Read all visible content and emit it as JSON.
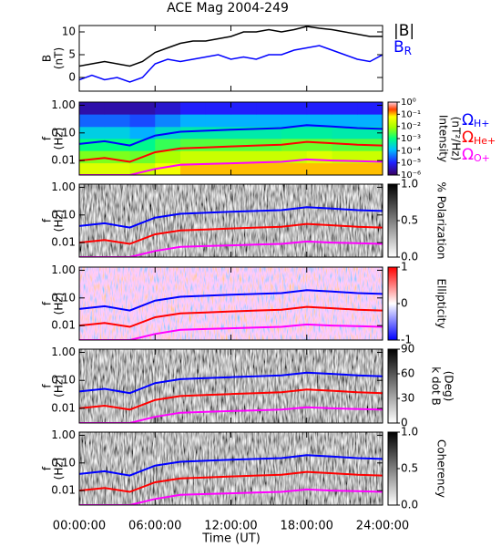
{
  "title": "ACE Mag 2004-249",
  "time_axis": {
    "xlim": [
      0,
      24
    ],
    "xticks": [
      {
        "value": 0,
        "label": "00:00:00"
      },
      {
        "value": 6,
        "label": "06:00:00"
      },
      {
        "value": 12,
        "label": "12:00:00"
      },
      {
        "value": 18,
        "label": "18:00:00"
      },
      {
        "value": 24,
        "label": "24:00:00"
      }
    ],
    "xlabel": "Time (UT)"
  },
  "chart_data": [
    {
      "type": "line",
      "ylabel": [
        "B",
        "(nT)"
      ],
      "ylim": [
        -3,
        11.4
      ],
      "yticks": [
        0,
        5,
        10
      ],
      "x": [
        0,
        1,
        2,
        3,
        4,
        5,
        6,
        7,
        8,
        9,
        10,
        11,
        12,
        13,
        14,
        15,
        16,
        17,
        18,
        19,
        20,
        21,
        22,
        23,
        24
      ],
      "series": [
        {
          "name": "|B|",
          "color": "#000000",
          "values": [
            2.5,
            3,
            3.5,
            3,
            2.5,
            3.5,
            5.5,
            6.5,
            7.5,
            8,
            8,
            8.5,
            9,
            10,
            10,
            10.5,
            10,
            10.5,
            11.2,
            10.8,
            10.5,
            10,
            9.5,
            9,
            9
          ]
        },
        {
          "name": "B",
          "subscript": "R",
          "color": "#0000ff",
          "values": [
            -0.5,
            0.5,
            -0.5,
            0,
            -1,
            0,
            3,
            4,
            3.5,
            4,
            4.5,
            5,
            4,
            4.5,
            4,
            5,
            5,
            6,
            6.5,
            7,
            6,
            5,
            4,
            3.5,
            5
          ]
        }
      ]
    },
    {
      "type": "heatmap",
      "ylabel": [
        "f",
        "(Hz)"
      ],
      "ylog": true,
      "ylim": [
        0.003,
        1.3
      ],
      "yticks": [
        0.01,
        {
          "value": 0.1,
          "label": "0.10"
        },
        {
          "value": 1,
          "label": "1.00"
        }
      ],
      "xbins": [
        0,
        2,
        4,
        6,
        8,
        10,
        12,
        14,
        16,
        18,
        20,
        22,
        24
      ],
      "fbins": [
        0.003,
        0.0083,
        0.023,
        0.063,
        0.17,
        0.48,
        1.3
      ],
      "z": [
        [
          0.03,
          0.03,
          0.02,
          0.05,
          0.1,
          0.1,
          0.1,
          0.1,
          0.1,
          0.1,
          0.1,
          0.1
        ],
        [
          0.005,
          0.005,
          0.004,
          0.01,
          0.02,
          0.02,
          0.02,
          0.02,
          0.02,
          0.03,
          0.02,
          0.02
        ],
        [
          0.001,
          0.001,
          0.0008,
          0.002,
          0.003,
          0.003,
          0.003,
          0.003,
          0.004,
          0.004,
          0.003,
          0.003
        ],
        [
          0.0002,
          0.0002,
          0.0001,
          0.0003,
          0.0005,
          0.0005,
          0.0005,
          0.0005,
          0.0006,
          0.0006,
          0.0005,
          0.0005
        ],
        [
          3e-05,
          3e-05,
          2e-05,
          5e-05,
          0.0001,
          0.0001,
          0.0001,
          0.0001,
          0.0001,
          0.0001,
          0.0001,
          0.0001
        ],
        [
          3e-06,
          3e-06,
          3e-06,
          5e-06,
          1e-05,
          1e-05,
          1e-05,
          1e-05,
          1e-05,
          1e-05,
          1e-05,
          1e-05
        ]
      ],
      "colormap": "intensity",
      "zlog": true,
      "zlim": [
        1e-06,
        1
      ],
      "zticks": [
        {
          "value": 1,
          "label": "10⁰"
        },
        {
          "value": 0.1,
          "label": "10⁻¹"
        },
        {
          "value": 0.01,
          "label": "10⁻²"
        },
        {
          "value": 0.001,
          "label": "10⁻³"
        },
        {
          "value": 0.0001,
          "label": "10⁻⁴"
        },
        {
          "value": 1e-05,
          "label": "10⁻⁵"
        },
        {
          "value": 1e-06,
          "label": "10⁻⁶"
        }
      ],
      "zlabel": [
        "Intensity",
        "(nT²/Hz)"
      ],
      "x": [
        0,
        2,
        4,
        6,
        8,
        10,
        12,
        14,
        16,
        18,
        20,
        22,
        24
      ],
      "series": [
        {
          "name": "Ω",
          "subscript": "H+",
          "color": "#0000ff",
          "values": [
            0.04,
            0.05,
            0.035,
            0.08,
            0.11,
            0.12,
            0.13,
            0.14,
            0.15,
            0.19,
            0.17,
            0.15,
            0.14
          ]
        },
        {
          "name": "Ω",
          "subscript": "He+",
          "color": "#ff0000",
          "values": [
            0.01,
            0.0125,
            0.009,
            0.02,
            0.0275,
            0.03,
            0.0325,
            0.035,
            0.0375,
            0.0475,
            0.0425,
            0.0375,
            0.035
          ]
        },
        {
          "name": "Ω",
          "subscript": "O+",
          "color": "#ff00ff",
          "values": [
            0.003,
            0.003,
            0.003,
            0.005,
            0.007,
            0.0075,
            0.008,
            0.0085,
            0.009,
            0.011,
            0.01,
            0.0095,
            0.009
          ]
        }
      ]
    },
    {
      "type": "texture",
      "ylabel": [
        "f",
        "(Hz)"
      ],
      "ylog": true,
      "ylim": [
        0.003,
        1.3
      ],
      "yticks": [
        0.01,
        {
          "value": 0.1,
          "label": "0.10"
        },
        {
          "value": 1,
          "label": "1.00"
        }
      ],
      "colormap": "gray",
      "zlim": [
        0,
        1
      ],
      "zticks": [
        {
          "value": 0,
          "label": "0.0"
        },
        {
          "value": 0.5,
          "label": "0.5"
        },
        {
          "value": 1,
          "label": "1.0"
        }
      ],
      "zlabel": [
        "% Polarization"
      ],
      "x": [
        0,
        2,
        4,
        6,
        8,
        10,
        12,
        14,
        16,
        18,
        20,
        22,
        24
      ],
      "series": [
        {
          "color": "#0000ff",
          "values": [
            0.04,
            0.05,
            0.035,
            0.08,
            0.11,
            0.12,
            0.13,
            0.14,
            0.15,
            0.19,
            0.17,
            0.15,
            0.14
          ]
        },
        {
          "color": "#ff0000",
          "values": [
            0.01,
            0.0125,
            0.009,
            0.02,
            0.0275,
            0.03,
            0.0325,
            0.035,
            0.0375,
            0.0475,
            0.0425,
            0.0375,
            0.035
          ]
        },
        {
          "color": "#ff00ff",
          "values": [
            0.003,
            0.003,
            0.003,
            0.005,
            0.007,
            0.0075,
            0.008,
            0.0085,
            0.009,
            0.011,
            0.01,
            0.0095,
            0.009
          ]
        }
      ]
    },
    {
      "type": "texture",
      "ylabel": [
        "f",
        "(Hz)"
      ],
      "ylog": true,
      "ylim": [
        0.003,
        1.3
      ],
      "yticks": [
        0.01,
        {
          "value": 0.1,
          "label": "0.10"
        },
        {
          "value": 1,
          "label": "1.00"
        }
      ],
      "colormap": "bwr",
      "zlim": [
        -1,
        1
      ],
      "zticks": [
        -1,
        0,
        1
      ],
      "zlabel": [
        "Ellipticity"
      ],
      "x": [
        0,
        2,
        4,
        6,
        8,
        10,
        12,
        14,
        16,
        18,
        20,
        22,
        24
      ],
      "series": [
        {
          "color": "#0000ff",
          "values": [
            0.04,
            0.05,
            0.035,
            0.08,
            0.11,
            0.12,
            0.13,
            0.14,
            0.15,
            0.19,
            0.17,
            0.15,
            0.14
          ]
        },
        {
          "color": "#ff0000",
          "values": [
            0.01,
            0.0125,
            0.009,
            0.02,
            0.0275,
            0.03,
            0.0325,
            0.035,
            0.0375,
            0.0475,
            0.0425,
            0.0375,
            0.035
          ]
        },
        {
          "color": "#ff00ff",
          "values": [
            0.003,
            0.003,
            0.003,
            0.005,
            0.007,
            0.0075,
            0.008,
            0.0085,
            0.009,
            0.011,
            0.01,
            0.0095,
            0.009
          ]
        }
      ]
    },
    {
      "type": "texture",
      "ylabel": [
        "f",
        "(Hz)"
      ],
      "ylog": true,
      "ylim": [
        0.003,
        1.3
      ],
      "yticks": [
        0.01,
        {
          "value": 0.1,
          "label": "0.10"
        },
        {
          "value": 1,
          "label": "1.00"
        }
      ],
      "colormap": "gray",
      "zlim": [
        0,
        90
      ],
      "zticks": [
        0,
        30,
        60,
        90
      ],
      "zlabel": [
        "k dot B",
        "(Deg)"
      ],
      "x": [
        0,
        2,
        4,
        6,
        8,
        10,
        12,
        14,
        16,
        18,
        20,
        22,
        24
      ],
      "series": [
        {
          "color": "#0000ff",
          "values": [
            0.04,
            0.05,
            0.035,
            0.08,
            0.11,
            0.12,
            0.13,
            0.14,
            0.15,
            0.19,
            0.17,
            0.15,
            0.14
          ]
        },
        {
          "color": "#ff0000",
          "values": [
            0.01,
            0.0125,
            0.009,
            0.02,
            0.0275,
            0.03,
            0.0325,
            0.035,
            0.0375,
            0.0475,
            0.0425,
            0.0375,
            0.035
          ]
        },
        {
          "color": "#ff00ff",
          "values": [
            0.003,
            0.003,
            0.003,
            0.005,
            0.007,
            0.0075,
            0.008,
            0.0085,
            0.009,
            0.011,
            0.01,
            0.0095,
            0.009
          ]
        }
      ]
    },
    {
      "type": "texture",
      "ylabel": [
        "f",
        "(Hz)"
      ],
      "ylog": true,
      "ylim": [
        0.003,
        1.3
      ],
      "yticks": [
        0.01,
        {
          "value": 0.1,
          "label": "0.10"
        },
        {
          "value": 1,
          "label": "1.00"
        }
      ],
      "colormap": "gray",
      "zlim": [
        0,
        1
      ],
      "zticks": [
        {
          "value": 0,
          "label": "0.0"
        },
        {
          "value": 0.5,
          "label": "0.5"
        },
        {
          "value": 1,
          "label": "1.0"
        }
      ],
      "zlabel": [
        "Coherency"
      ],
      "x": [
        0,
        2,
        4,
        6,
        8,
        10,
        12,
        14,
        16,
        18,
        20,
        22,
        24
      ],
      "series": [
        {
          "color": "#0000ff",
          "values": [
            0.04,
            0.05,
            0.035,
            0.08,
            0.11,
            0.12,
            0.13,
            0.14,
            0.15,
            0.19,
            0.17,
            0.15,
            0.14
          ]
        },
        {
          "color": "#ff0000",
          "values": [
            0.01,
            0.0125,
            0.009,
            0.02,
            0.0275,
            0.03,
            0.0325,
            0.035,
            0.0375,
            0.0475,
            0.0425,
            0.0375,
            0.035
          ]
        },
        {
          "color": "#ff00ff",
          "values": [
            0.003,
            0.003,
            0.003,
            0.005,
            0.007,
            0.0075,
            0.008,
            0.0085,
            0.009,
            0.011,
            0.01,
            0.0095,
            0.009
          ]
        }
      ]
    }
  ]
}
